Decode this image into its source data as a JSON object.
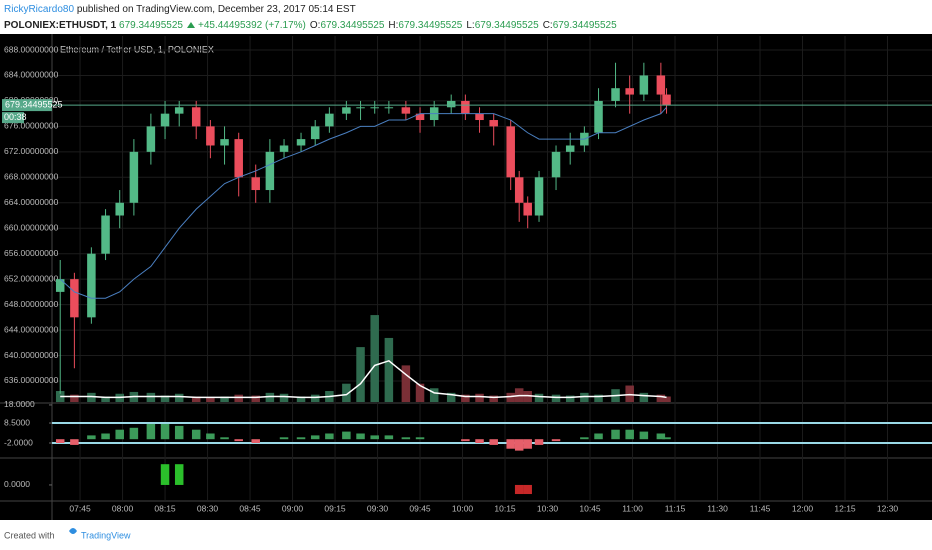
{
  "header": {
    "author": "RickyRicardo80",
    "published": "published on TradingView.com, December 23, 2017 05:14 EST",
    "symbol": "POLONIEX:ETHUSDT, 1",
    "last": "679.34495525",
    "change": "+45.44495392 (+7.17%)",
    "ohlc": [
      {
        "label": "O:",
        "value": "679.34495525"
      },
      {
        "label": "H:",
        "value": "679.34495525"
      },
      {
        "label": "L:",
        "value": "679.34495525"
      },
      {
        "label": "C:",
        "value": "679.34495525"
      }
    ]
  },
  "chart_data": [
    {
      "type": "candlestick",
      "title": "Ethereum / Tether USD, 1, POLONIEX",
      "up_color": "#53b987",
      "down_color": "#eb4d5c",
      "grid": true,
      "grid_color": "#1c1c1c",
      "x": [
        458,
        463,
        469,
        474,
        479,
        484,
        490,
        495,
        500,
        506,
        511,
        516,
        521,
        527,
        532,
        537,
        543,
        548,
        553,
        559,
        564,
        569,
        574,
        580,
        585,
        590,
        596,
        601,
        606,
        611,
        617,
        620,
        623,
        627,
        633,
        638,
        643,
        648,
        654,
        659,
        664,
        670,
        672
      ],
      "open": [
        650,
        652,
        646,
        656,
        662,
        664,
        672,
        676,
        678,
        679,
        676,
        673,
        674,
        668,
        666,
        672,
        673,
        674,
        676,
        678,
        679,
        679,
        679,
        679,
        678,
        677,
        679,
        680,
        678,
        677,
        676,
        668,
        664,
        662,
        668,
        672,
        673,
        675,
        680,
        682,
        681,
        684,
        681
      ],
      "high": [
        655,
        653,
        657,
        663,
        666,
        674,
        678,
        680,
        680,
        680,
        677,
        676,
        675,
        670,
        674,
        674,
        675,
        677,
        679,
        680,
        680,
        680,
        680,
        680,
        679,
        680,
        681,
        681,
        679,
        678,
        677,
        669,
        665,
        669,
        673,
        675,
        676,
        682,
        686,
        684,
        686,
        686,
        682
      ],
      "low": [
        634,
        638,
        645,
        655,
        660,
        662,
        670,
        674,
        676,
        674,
        671,
        670,
        665,
        664,
        664,
        671,
        672,
        673,
        675,
        677,
        677,
        678,
        678,
        677,
        675,
        676,
        678,
        677,
        675,
        673,
        666,
        661,
        660,
        661,
        666,
        670,
        672,
        674,
        679,
        678,
        680,
        678,
        678
      ],
      "close": [
        652,
        646,
        656,
        662,
        664,
        672,
        676,
        678,
        679,
        676,
        673,
        674,
        668,
        666,
        672,
        673,
        674,
        676,
        678,
        679,
        679,
        679,
        679,
        678,
        677,
        679,
        680,
        678,
        677,
        676,
        668,
        664,
        662,
        668,
        672,
        673,
        675,
        680,
        682,
        681,
        684,
        681,
        679.34495525
      ],
      "ma": {
        "color": "#4a7fc0",
        "values": [
          652,
          650,
          649,
          649,
          650,
          652,
          654,
          657,
          660,
          663,
          665,
          667,
          668,
          669,
          670,
          671,
          672,
          673,
          674,
          675,
          676,
          676,
          677,
          677,
          678,
          678,
          678,
          678,
          678,
          678,
          677,
          676,
          675,
          674,
          674,
          674,
          674,
          675,
          675,
          676,
          677,
          678,
          679
        ]
      },
      "volume": {
        "ylim": [
          0,
          400
        ],
        "up_color": "#2f6b4f",
        "down_color": "#7a2f36",
        "ma_color": "#ffffff",
        "values": [
          12,
          8,
          10,
          6,
          9,
          11,
          10,
          7,
          9,
          6,
          5,
          6,
          8,
          7,
          10,
          9,
          6,
          8,
          12,
          20,
          60,
          95,
          70,
          40,
          20,
          15,
          10,
          8,
          9,
          7,
          10,
          15,
          12,
          9,
          8,
          7,
          10,
          8,
          14,
          18,
          10,
          8,
          6
        ],
        "ma": [
          6,
          6,
          6,
          5,
          5,
          6,
          6,
          6,
          6,
          5,
          5,
          5,
          5,
          5,
          6,
          6,
          5,
          5,
          6,
          8,
          20,
          40,
          45,
          30,
          18,
          10,
          8,
          6,
          6,
          5,
          6,
          7,
          7,
          6,
          5,
          5,
          6,
          6,
          7,
          8,
          7,
          6,
          5
        ]
      },
      "last_price": {
        "value": 679.34495525,
        "label": "679.34495525",
        "countdown": "00:38",
        "color": "#57a98a"
      },
      "xlim": [
        455.1,
        765.7
      ],
      "xticks": [
        {
          "value": 465,
          "label": "07:45"
        },
        {
          "value": 480,
          "label": "08:00"
        },
        {
          "value": 495,
          "label": "08:15"
        },
        {
          "value": 510,
          "label": "08:30"
        },
        {
          "value": 525,
          "label": "08:45"
        },
        {
          "value": 540,
          "label": "09:00"
        },
        {
          "value": 555,
          "label": "09:15"
        },
        {
          "value": 570,
          "label": "09:30"
        },
        {
          "value": 585,
          "label": "09:45"
        },
        {
          "value": 600,
          "label": "10:00"
        },
        {
          "value": 615,
          "label": "10:15"
        },
        {
          "value": 630,
          "label": "10:30"
        },
        {
          "value": 645,
          "label": "10:45"
        },
        {
          "value": 660,
          "label": "11:00"
        },
        {
          "value": 675,
          "label": "11:15"
        },
        {
          "value": 690,
          "label": "11:30"
        },
        {
          "value": 705,
          "label": "11:45"
        },
        {
          "value": 720,
          "label": "12:00"
        },
        {
          "value": 735,
          "label": "12:15"
        },
        {
          "value": 750,
          "label": "12:30"
        }
      ],
      "ylim": [
        632.7,
        690.2
      ],
      "yticks": [
        {
          "value": 688,
          "label": "688.00000000"
        },
        {
          "value": 684,
          "label": "684.00000000"
        },
        {
          "value": 680,
          "label": "680.00000000"
        },
        {
          "value": 676,
          "label": "676.00000000"
        },
        {
          "value": 672,
          "label": "672.00000000"
        },
        {
          "value": 668,
          "label": "668.00000000"
        },
        {
          "value": 664,
          "label": "664.00000000"
        },
        {
          "value": 660,
          "label": "660.00000000"
        },
        {
          "value": 656,
          "label": "656.00000000"
        },
        {
          "value": 652,
          "label": "652.00000000"
        },
        {
          "value": 648,
          "label": "648.00000000"
        },
        {
          "value": 644,
          "label": "644.00000000"
        },
        {
          "value": 640,
          "label": "640.00000000"
        },
        {
          "value": 636,
          "label": "636.00000000"
        }
      ]
    },
    {
      "type": "bar",
      "up_color": "#3c9b5a",
      "down_color": "#e65f6a",
      "hline_color": "#9ad9e6",
      "values": [
        -2,
        -3,
        2,
        3,
        5,
        6,
        8,
        8,
        7,
        5,
        3,
        1,
        -1,
        -2,
        0,
        1,
        1,
        2,
        3,
        4,
        3,
        2,
        2,
        1,
        1,
        0,
        0,
        -1,
        -2,
        -3,
        -5,
        -6,
        -5,
        -3,
        -1,
        0,
        1,
        3,
        5,
        5,
        4,
        3,
        1
      ],
      "hlines": [
        8.5,
        -2
      ],
      "ylim": [
        -9.35,
        18.5
      ],
      "yticks": [
        {
          "value": 18,
          "label": "18.0000"
        },
        {
          "value": 8.5,
          "label": "8.5000"
        },
        {
          "value": -2,
          "label": "-2.0000"
        }
      ]
    },
    {
      "type": "bar",
      "up_color": "#2bbf2b",
      "down_color": "#c62828",
      "values": [
        0,
        0,
        0,
        0,
        0,
        0,
        0,
        0.8,
        0.8,
        0,
        0,
        0,
        0,
        0,
        0,
        0,
        0,
        0,
        0,
        0,
        0,
        0,
        0,
        0,
        0,
        0,
        0,
        0,
        0,
        0,
        0,
        -0.35,
        -0.35,
        0,
        0,
        0,
        0,
        0,
        0,
        0,
        0,
        0,
        0
      ],
      "ylim": [
        -0.58,
        1
      ],
      "yticks": [
        {
          "value": 0,
          "label": "0.0000"
        }
      ]
    }
  ]
}
